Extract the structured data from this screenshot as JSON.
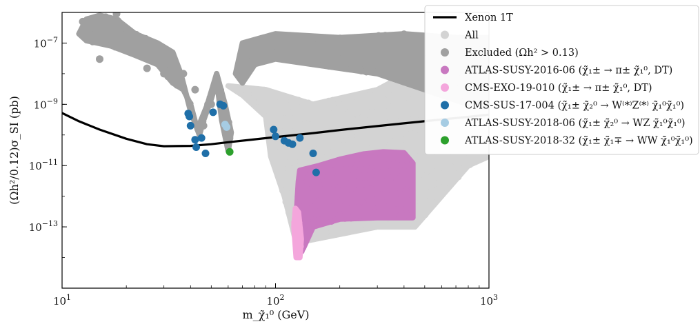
{
  "chart_data": {
    "type": "scatter",
    "title": "",
    "xlabel": "m_χ̃₁⁰ (GeV)",
    "ylabel": "(Ωh²/0.12)σ_SI (pb)",
    "x_scale": "log",
    "y_scale": "log",
    "xlim": [
      10,
      1000
    ],
    "ylim": [
      1e-15,
      1e-06
    ],
    "x_ticks": [
      {
        "value": 10,
        "base": "10",
        "exp": "1"
      },
      {
        "value": 100,
        "base": "10",
        "exp": "2"
      },
      {
        "value": 1000,
        "base": "10",
        "exp": "3"
      }
    ],
    "y_ticks": [
      {
        "value": 1e-07,
        "base": "10",
        "exp": "−7"
      },
      {
        "value": 1e-09,
        "base": "10",
        "exp": "−9"
      },
      {
        "value": 1e-11,
        "base": "10",
        "exp": "−11"
      },
      {
        "value": 1e-13,
        "base": "10",
        "exp": "−13"
      }
    ],
    "grid": false,
    "legend_position": "top-right",
    "colors": {
      "xenon": "#000000",
      "all": "#d3d3d3",
      "excluded": "#a0a0a0",
      "atlas_2016_06": "#c878c0",
      "cms_exo_19_010": "#f4a6dc",
      "cms_sus_17_004": "#1f6fa8",
      "atlas_2018_06": "#a6cce3",
      "atlas_2018_32": "#2ca02c"
    },
    "legend": [
      {
        "key": "xenon",
        "kind": "line",
        "label": "Xenon 1T"
      },
      {
        "key": "all",
        "kind": "marker",
        "label": "All"
      },
      {
        "key": "excluded",
        "kind": "marker",
        "label": "Excluded (Ωh² > 0.13)"
      },
      {
        "key": "atlas_2016_06",
        "kind": "marker",
        "label": "ATLAS-SUSY-2016-06 (χ̃₁± → π± χ̃₁⁰, DT)"
      },
      {
        "key": "cms_exo_19_010",
        "kind": "marker",
        "label": "CMS-EXO-19-010 (χ̃₁± → π± χ̃₁⁰, DT)"
      },
      {
        "key": "cms_sus_17_004",
        "kind": "marker",
        "label": "CMS-SUS-17-004 (χ̃₁± χ̃₂⁰ → W⁽*⁾Z⁽*⁾ χ̃₁⁰χ̃₁⁰)"
      },
      {
        "key": "atlas_2018_06",
        "kind": "marker",
        "label": "ATLAS-SUSY-2018-06 (χ̃₁± χ̃₂⁰ → WZ χ̃₁⁰χ̃₁⁰)"
      },
      {
        "key": "atlas_2018_32",
        "kind": "marker",
        "label": "ATLAS-SUSY-2018-32 (χ̃₁± χ̃₁∓ → WW χ̃₁⁰χ̃₁⁰)"
      }
    ],
    "xenon_1t": {
      "x": [
        10,
        12,
        15,
        20,
        25,
        30,
        40,
        50,
        60,
        80,
        100,
        150,
        200,
        300,
        400,
        600,
        800,
        1000
      ],
      "y": [
        5.2e-10,
        2.8e-10,
        1.5e-10,
        7.5e-11,
        5e-11,
        4.3e-11,
        4.4e-11,
        5e-11,
        5.8e-11,
        7.2e-11,
        8.5e-11,
        1.15e-10,
        1.45e-10,
        1.95e-10,
        2.4e-10,
        3.2e-10,
        3.9e-10,
        4.6e-10
      ]
    },
    "regions": [
      {
        "series": "all",
        "polygon": [
          [
            60,
            4e-09
          ],
          [
            70,
            2e-09
          ],
          [
            90,
            4e-10
          ],
          [
            95,
            2e-11
          ],
          [
            110,
            1e-12
          ],
          [
            125,
            3e-14
          ],
          [
            300,
            1e-13
          ],
          [
            450,
            1e-13
          ],
          [
            600,
            1e-12
          ],
          [
            800,
            1e-11
          ],
          [
            1000,
            2e-11
          ],
          [
            1000,
            1e-09
          ],
          [
            800,
            2e-08
          ],
          [
            500,
            2e-08
          ],
          [
            300,
            3e-09
          ],
          [
            150,
            1e-09
          ],
          [
            90,
            3e-09
          ]
        ]
      },
      {
        "series": "excluded",
        "polygon": [
          [
            65,
            1e-08
          ],
          [
            70,
            1e-07
          ],
          [
            100,
            2e-07
          ],
          [
            200,
            1.5e-07
          ],
          [
            400,
            2e-07
          ],
          [
            700,
            1.5e-07
          ],
          [
            1000,
            1.5e-07
          ],
          [
            1000,
            1e-09
          ],
          [
            800,
            1e-09
          ],
          [
            500,
            3e-09
          ],
          [
            300,
            1e-08
          ],
          [
            150,
            2e-08
          ],
          [
            100,
            3e-08
          ],
          [
            80,
            2e-08
          ],
          [
            70,
            5e-09
          ]
        ]
      },
      {
        "series": "excluded",
        "polygon": [
          [
            12,
            2e-07
          ],
          [
            13,
            6e-07
          ],
          [
            15,
            8e-07
          ],
          [
            18,
            6e-07
          ],
          [
            22,
            2e-07
          ],
          [
            28,
            1e-07
          ],
          [
            33,
            5e-08
          ],
          [
            36,
            1e-08
          ],
          [
            40,
            6e-10
          ],
          [
            44,
            1e-10
          ],
          [
            46,
            3e-10
          ],
          [
            50,
            1.5e-09
          ],
          [
            53,
            6e-09
          ],
          [
            56,
            3e-10
          ],
          [
            60,
            3e-11
          ],
          [
            62,
            1.2e-10
          ],
          [
            58,
            1e-09
          ],
          [
            53,
            1e-08
          ],
          [
            48,
            1e-09
          ],
          [
            43,
            1.5e-10
          ],
          [
            40,
            1e-09
          ],
          [
            37,
            3e-09
          ],
          [
            33,
            5e-09
          ],
          [
            28,
            2e-08
          ],
          [
            22,
            4e-08
          ],
          [
            17,
            8e-08
          ],
          [
            13,
            1.2e-07
          ]
        ]
      },
      {
        "series": "atlas_2016_06",
        "polygon": [
          [
            130,
            7e-12
          ],
          [
            160,
            1e-11
          ],
          [
            200,
            1.6e-11
          ],
          [
            260,
            2.4e-11
          ],
          [
            320,
            2.8e-11
          ],
          [
            400,
            2.6e-11
          ],
          [
            440,
            1.2e-11
          ],
          [
            440,
            2e-13
          ],
          [
            300,
            2e-13
          ],
          [
            200,
            1.8e-13
          ],
          [
            150,
            1e-13
          ],
          [
            135,
            2e-14
          ],
          [
            128,
            1.2e-14
          ],
          [
            125,
            2e-13
          ],
          [
            128,
            3e-12
          ]
        ]
      },
      {
        "series": "cms_exo_19_010",
        "polygon": [
          [
            124,
            4e-13
          ],
          [
            128,
            3e-13
          ],
          [
            132,
            4e-14
          ],
          [
            130,
            1e-14
          ],
          [
            125,
            1e-14
          ],
          [
            122,
            1e-13
          ]
        ]
      }
    ],
    "series_points": {
      "excluded": {
        "x": [
          12.5,
          13.5,
          16,
          18,
          20,
          15,
          22,
          25,
          27,
          30,
          33,
          35,
          37,
          42,
          46,
          50,
          53,
          57
        ],
        "y": [
          5e-07,
          2e-07,
          7e-07,
          9e-07,
          3e-07,
          3e-08,
          1e-07,
          1.5e-08,
          5e-08,
          1e-08,
          3e-08,
          6e-09,
          1e-08,
          3e-09,
          2e-10,
          1e-09,
          3e-09,
          8e-10
        ]
      },
      "cms_sus_17_004": {
        "x": [
          39,
          39.5,
          40,
          42,
          42.5,
          45,
          47,
          51,
          55,
          57,
          98,
          100,
          110,
          115,
          120,
          130,
          150,
          155
        ],
        "y": [
          5e-10,
          4e-10,
          2e-10,
          7e-11,
          4e-11,
          8e-11,
          2.5e-11,
          5.5e-10,
          1e-09,
          9e-10,
          1.5e-10,
          9e-11,
          6.5e-11,
          5.5e-11,
          5e-11,
          8e-11,
          2.5e-11,
          6e-12
        ]
      },
      "atlas_2018_06": {
        "x": [
          58,
          59
        ],
        "y": [
          2.2e-10,
          1.8e-10
        ]
      },
      "atlas_2018_32": {
        "x": [
          61
        ],
        "y": [
          2.8e-11
        ]
      }
    }
  }
}
